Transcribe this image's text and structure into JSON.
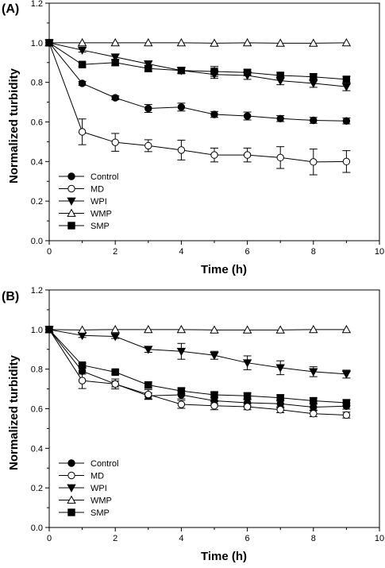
{
  "chart_data": [
    {
      "type": "line",
      "panel_label": "(A)",
      "xlabel": "Time (h)",
      "ylabel": "Normalized turbidity",
      "xlim": [
        0,
        10
      ],
      "ylim": [
        0,
        1.2
      ],
      "xticks": [
        0,
        2,
        4,
        6,
        8,
        10
      ],
      "xtick_labels": [
        "0",
        "2",
        "4",
        "6",
        "8",
        "10"
      ],
      "yticks": [
        0,
        0.2,
        0.4,
        0.6,
        0.8,
        1.0,
        1.2
      ],
      "ytick_labels": [
        "0.0",
        "0.2",
        "0.4",
        "0.6",
        "0.8",
        "1.0",
        "1.2"
      ],
      "grid": false,
      "legend_position": "lower-left",
      "x": [
        0,
        1,
        2,
        3,
        4,
        5,
        6,
        7,
        8,
        9
      ],
      "series": [
        {
          "name": "Control",
          "marker": "filled-circle",
          "values": [
            1.0,
            0.795,
            0.722,
            0.668,
            0.675,
            0.638,
            0.63,
            0.617,
            0.608,
            0.605
          ],
          "errors": [
            0,
            0.01,
            0.01,
            0.02,
            0.02,
            0.015,
            0.02,
            0.015,
            0.015,
            0.015
          ]
        },
        {
          "name": "MD",
          "marker": "open-circle",
          "values": [
            1.0,
            0.55,
            0.497,
            0.48,
            0.458,
            0.433,
            0.433,
            0.42,
            0.398,
            0.4
          ],
          "errors": [
            0,
            0.065,
            0.045,
            0.03,
            0.05,
            0.035,
            0.035,
            0.055,
            0.065,
            0.055
          ]
        },
        {
          "name": "WPI",
          "marker": "filled-triangle-down",
          "values": [
            1.0,
            0.963,
            0.928,
            0.893,
            0.86,
            0.84,
            0.835,
            0.808,
            0.795,
            0.778
          ],
          "errors": [
            0,
            0.01,
            0.015,
            0.015,
            0.015,
            0.02,
            0.02,
            0.02,
            0.02,
            0.02
          ]
        },
        {
          "name": "WMP",
          "marker": "open-triangle-up",
          "values": [
            1.0,
            1.0,
            1.0,
            1.0,
            1.0,
            0.998,
            1.0,
            0.998,
            0.998,
            1.0
          ],
          "errors": [
            0,
            0,
            0,
            0,
            0,
            0,
            0,
            0,
            0,
            0
          ]
        },
        {
          "name": "SMP",
          "marker": "filled-square",
          "values": [
            1.0,
            0.89,
            0.9,
            0.87,
            0.86,
            0.855,
            0.85,
            0.835,
            0.828,
            0.815
          ],
          "errors": [
            0,
            0.01,
            0.015,
            0.015,
            0.015,
            0.025,
            0.015,
            0.015,
            0.015,
            0.015
          ]
        }
      ]
    },
    {
      "type": "line",
      "panel_label": "(B)",
      "xlabel": "Time (h)",
      "ylabel": "Normalized turbidity",
      "xlim": [
        0,
        10
      ],
      "ylim": [
        0,
        1.2
      ],
      "xticks": [
        0,
        2,
        4,
        6,
        8,
        10
      ],
      "xtick_labels": [
        "0",
        "2",
        "4",
        "6",
        "8",
        "10"
      ],
      "yticks": [
        0,
        0.2,
        0.4,
        0.6,
        0.8,
        1.0,
        1.2
      ],
      "ytick_labels": [
        "0.0",
        "0.2",
        "0.4",
        "0.6",
        "0.8",
        "1.0",
        "1.2"
      ],
      "grid": false,
      "legend_position": "lower-left",
      "x": [
        0,
        1,
        2,
        3,
        4,
        5,
        6,
        7,
        8,
        9
      ],
      "series": [
        {
          "name": "Control",
          "marker": "filled-circle",
          "values": [
            1.0,
            0.79,
            0.725,
            0.665,
            0.67,
            0.64,
            0.63,
            0.625,
            0.608,
            0.613
          ],
          "errors": [
            0,
            0.015,
            0.015,
            0.015,
            0.02,
            0.015,
            0.015,
            0.02,
            0.015,
            0.015
          ]
        },
        {
          "name": "MD",
          "marker": "open-circle",
          "values": [
            1.0,
            0.742,
            0.725,
            0.672,
            0.622,
            0.615,
            0.61,
            0.595,
            0.575,
            0.568
          ],
          "errors": [
            0,
            0.04,
            0.025,
            0.025,
            0.02,
            0.02,
            0.015,
            0.015,
            0.015,
            0.015
          ]
        },
        {
          "name": "WPI",
          "marker": "filled-triangle-down",
          "values": [
            1.0,
            0.97,
            0.965,
            0.9,
            0.89,
            0.87,
            0.832,
            0.807,
            0.787,
            0.775
          ],
          "errors": [
            0,
            0.01,
            0.01,
            0.015,
            0.04,
            0.02,
            0.035,
            0.035,
            0.025,
            0.02
          ]
        },
        {
          "name": "WMP",
          "marker": "open-triangle-up",
          "values": [
            1.0,
            0.998,
            1.0,
            1.0,
            1.0,
            0.998,
            0.998,
            0.998,
            1.0,
            1.0
          ],
          "errors": [
            0,
            0,
            0,
            0,
            0,
            0,
            0,
            0,
            0,
            0
          ]
        },
        {
          "name": "SMP",
          "marker": "filled-square",
          "values": [
            1.0,
            0.82,
            0.785,
            0.72,
            0.69,
            0.67,
            0.665,
            0.655,
            0.64,
            0.63
          ],
          "errors": [
            0,
            0.01,
            0.01,
            0.015,
            0.015,
            0.015,
            0.015,
            0.015,
            0.015,
            0.015
          ]
        }
      ]
    }
  ]
}
